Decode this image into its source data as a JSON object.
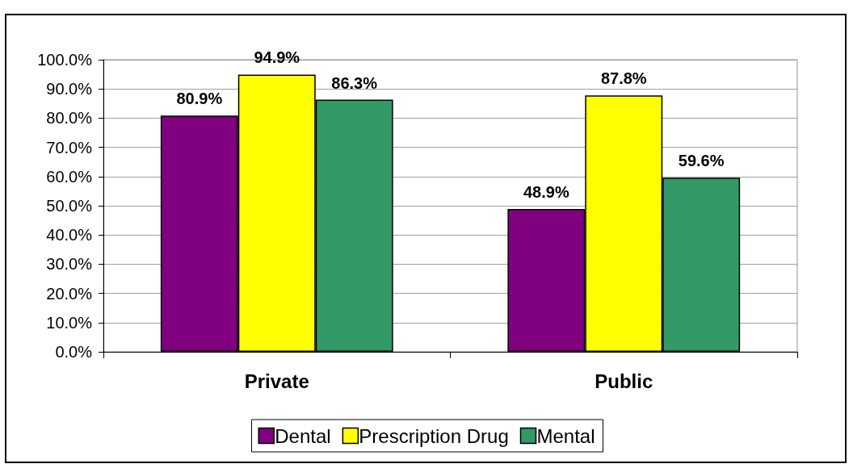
{
  "chart_data": {
    "type": "bar",
    "categories": [
      "Private",
      "Public"
    ],
    "series": [
      {
        "name": "Dental",
        "color": "#800080",
        "values": [
          80.9,
          48.9
        ],
        "value_labels": [
          "80.9%",
          "48.9%"
        ]
      },
      {
        "name": "Prescription Drug",
        "color": "#ffff00",
        "values": [
          94.9,
          87.8
        ],
        "value_labels": [
          "94.9%",
          "87.8%"
        ]
      },
      {
        "name": "Mental",
        "color": "#339966",
        "values": [
          86.3,
          59.6
        ],
        "value_labels": [
          "86.3%",
          "59.6%"
        ]
      }
    ],
    "ylim": [
      0,
      100
    ],
    "yticks": [
      {
        "value": 0,
        "label": "0.0%"
      },
      {
        "value": 10,
        "label": "10.0%"
      },
      {
        "value": 20,
        "label": "20.0%"
      },
      {
        "value": 30,
        "label": "30.0%"
      },
      {
        "value": 40,
        "label": "40.0%"
      },
      {
        "value": 50,
        "label": "50.0%"
      },
      {
        "value": 60,
        "label": "60.0%"
      },
      {
        "value": 70,
        "label": "70.0%"
      },
      {
        "value": 80,
        "label": "80.0%"
      },
      {
        "value": 90,
        "label": "90.0%"
      },
      {
        "value": 100,
        "label": "100.0%"
      }
    ],
    "grid": "y",
    "legend": "bottom"
  }
}
